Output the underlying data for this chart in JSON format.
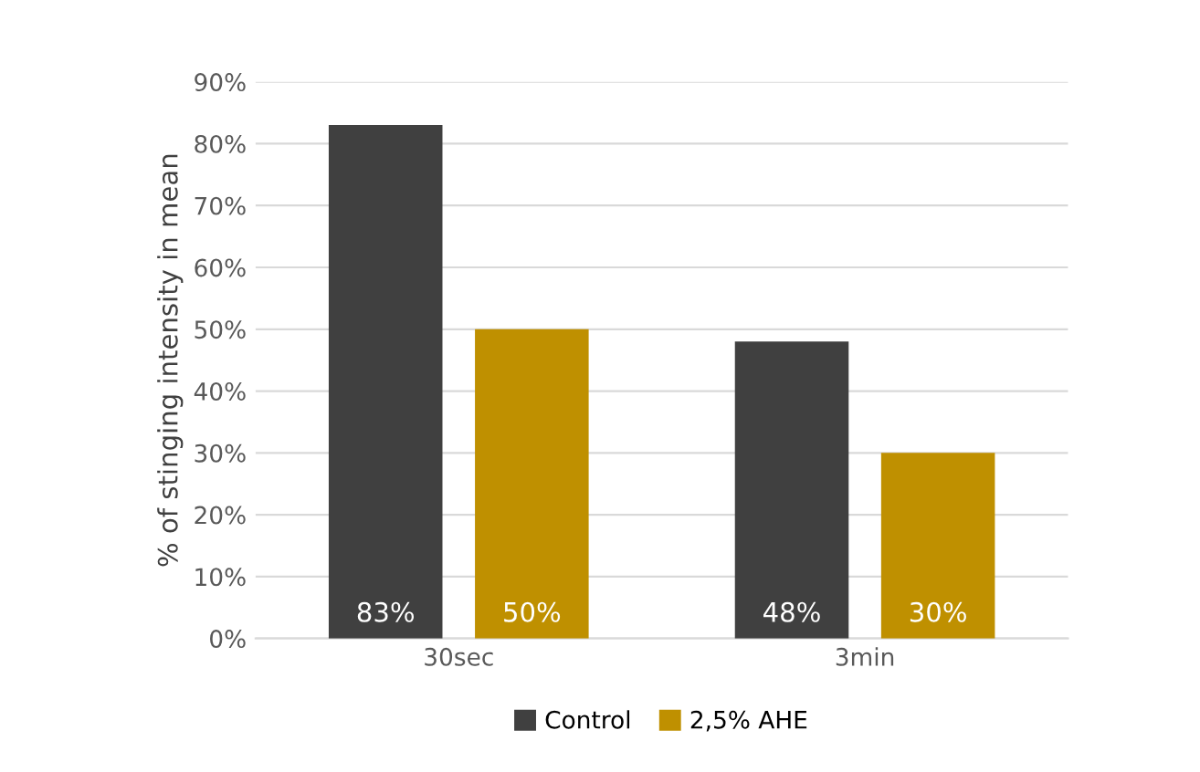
{
  "chart_data": {
    "type": "bar",
    "ylabel": "% of stinging intensity in mean",
    "categories": [
      "30sec",
      "3min"
    ],
    "series": [
      {
        "name": "Control",
        "color": "#404040",
        "values": [
          83,
          48
        ],
        "value_labels": [
          "83%",
          "48%"
        ]
      },
      {
        "name": "2,5% AHE",
        "color": "#bf9000",
        "values": [
          50,
          30
        ],
        "value_labels": [
          "50%",
          "30%"
        ]
      }
    ],
    "ylim": [
      0,
      90
    ],
    "yticks": [
      {
        "value": 0,
        "label": "0%"
      },
      {
        "value": 10,
        "label": "10%"
      },
      {
        "value": 20,
        "label": "20%"
      },
      {
        "value": 30,
        "label": "30%"
      },
      {
        "value": 40,
        "label": "40%"
      },
      {
        "value": 50,
        "label": "50%"
      },
      {
        "value": 60,
        "label": "60%"
      },
      {
        "value": 70,
        "label": "70%"
      },
      {
        "value": 80,
        "label": "80%"
      },
      {
        "value": 90,
        "label": "90%"
      }
    ],
    "grid": "y",
    "legend": "bottom"
  }
}
